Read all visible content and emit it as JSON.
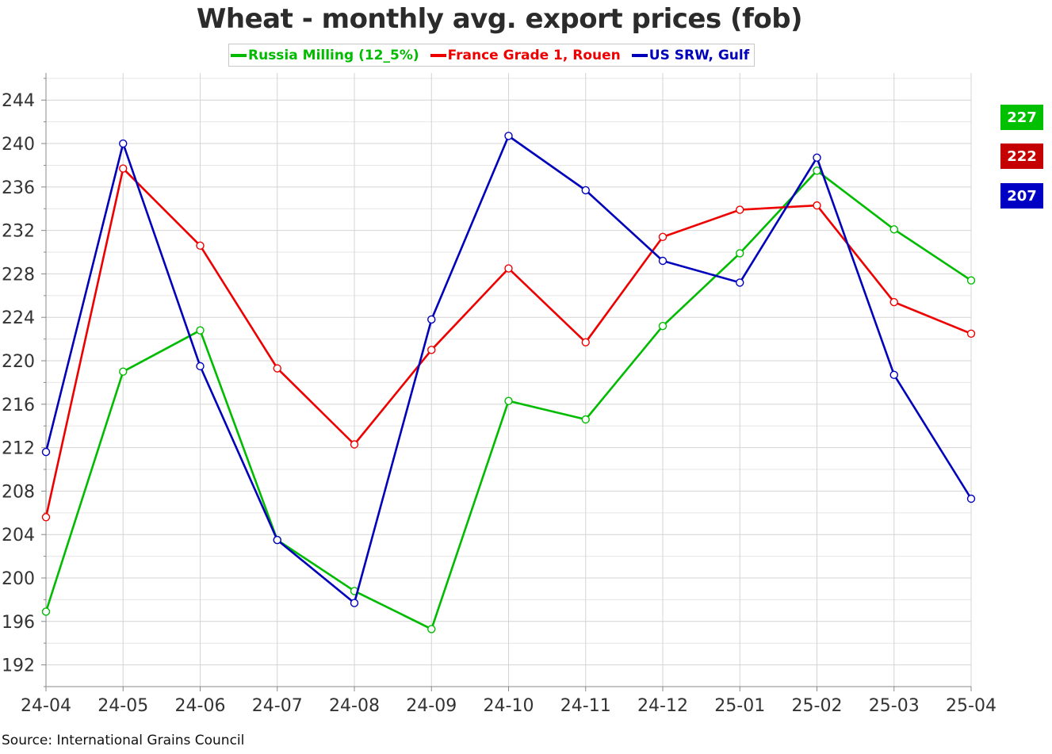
{
  "source": "Source: International Grains Council",
  "chart_data": {
    "type": "line",
    "title": "Wheat - monthly avg. export prices (fob)",
    "xlabel": "",
    "ylabel": "",
    "categories": [
      "24-04",
      "24-05",
      "24-06",
      "24-07",
      "24-08",
      "24-09",
      "24-10",
      "24-11",
      "24-12",
      "25-01",
      "25-02",
      "25-03",
      "25-04"
    ],
    "ylim": [
      190,
      246.5
    ],
    "yticks": [
      192,
      196,
      200,
      204,
      208,
      212,
      216,
      220,
      224,
      228,
      232,
      236,
      240,
      244
    ],
    "grid": true,
    "legend_position": "top-center",
    "series": [
      {
        "name": "Russia Milling (12_5%)",
        "color": "#00bb00",
        "values": [
          196.9,
          219.0,
          222.8,
          203.5,
          198.8,
          195.3,
          216.3,
          214.6,
          223.2,
          229.9,
          237.5,
          232.1,
          227.4
        ],
        "last_label": "227"
      },
      {
        "name": "France Grade 1, Rouen",
        "color": "#ee0000",
        "values": [
          205.6,
          237.7,
          230.6,
          219.3,
          212.3,
          221.0,
          228.5,
          221.7,
          231.4,
          233.9,
          234.3,
          225.4,
          222.5
        ],
        "last_label": "222"
      },
      {
        "name": "US SRW, Gulf",
        "color": "#0000bb",
        "values": [
          211.6,
          240.0,
          219.5,
          203.5,
          197.7,
          223.8,
          240.7,
          235.7,
          229.2,
          227.2,
          238.7,
          218.7,
          207.3
        ],
        "last_label": "207"
      }
    ]
  }
}
